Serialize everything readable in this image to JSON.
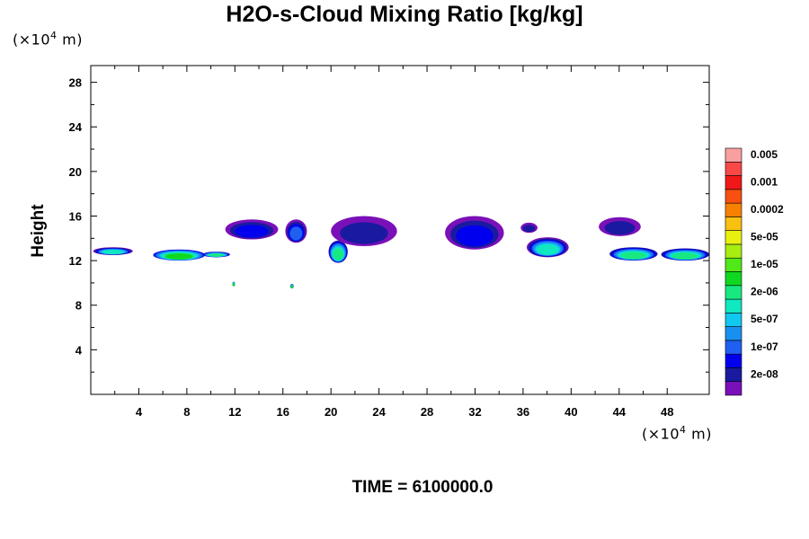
{
  "title": "H2O-s-Cloud Mixing Ratio [kg/kg]",
  "time_label": "TIME = 6100000.0",
  "y_unit": {
    "prefix": "(×10",
    "exp": "4",
    "suffix": " m)"
  },
  "x_unit": {
    "prefix": "(×10",
    "exp": "4",
    "suffix": " m)"
  },
  "chart_data": {
    "type": "heatmap",
    "title": "H2O-s-Cloud Mixing Ratio [kg/kg]",
    "xlabel": "",
    "ylabel": "Height",
    "xlim": [
      0,
      51.5
    ],
    "ylim": [
      0,
      29.5
    ],
    "x_ticks": [
      "4",
      "8",
      "12",
      "16",
      "20",
      "24",
      "28",
      "32",
      "36",
      "40",
      "44",
      "48"
    ],
    "y_ticks": [
      "4",
      "8",
      "12",
      "16",
      "20",
      "24",
      "28"
    ],
    "colorbar": {
      "labels": [
        "2e-08",
        "1e-07",
        "5e-07",
        "2e-06",
        "1e-05",
        "5e-05",
        "0.0002",
        "0.001",
        "0.005"
      ],
      "colors": [
        "#7a10b8",
        "#1a1aa0",
        "#0000ee",
        "#2060f0",
        "#1890f0",
        "#10c8f0",
        "#10e8c0",
        "#18e880",
        "#10d820",
        "#50e818",
        "#a8ec10",
        "#e8f010",
        "#f8c010",
        "#f88000",
        "#f85010",
        "#f01818",
        "#f84848",
        "#f8a0a0"
      ]
    },
    "cloud_regions": [
      {
        "x": [
          0.2,
          3.5
        ],
        "y": [
          12.5,
          13.2
        ],
        "level": 6
      },
      {
        "x": [
          5.2,
          9.5
        ],
        "y": [
          12.0,
          13.0
        ],
        "level": 8
      },
      {
        "x": [
          9.3,
          11.6
        ],
        "y": [
          12.3,
          12.8
        ],
        "level": 7
      },
      {
        "x": [
          11.2,
          15.6
        ],
        "y": [
          13.9,
          15.7
        ],
        "level": 2
      },
      {
        "x": [
          16.2,
          18.0
        ],
        "y": [
          13.6,
          15.7
        ],
        "level": 3
      },
      {
        "x": [
          19.8,
          21.4
        ],
        "y": [
          11.8,
          13.8
        ],
        "level": 7
      },
      {
        "x": [
          20.0,
          25.5
        ],
        "y": [
          13.3,
          16.0
        ],
        "level": 1
      },
      {
        "x": [
          29.5,
          34.4
        ],
        "y": [
          13.0,
          16.0
        ],
        "level": 2
      },
      {
        "x": [
          35.8,
          37.2
        ],
        "y": [
          14.5,
          15.4
        ],
        "level": 1
      },
      {
        "x": [
          36.3,
          39.8
        ],
        "y": [
          12.3,
          14.1
        ],
        "level": 6
      },
      {
        "x": [
          42.3,
          45.8
        ],
        "y": [
          14.2,
          15.9
        ],
        "level": 1
      },
      {
        "x": [
          43.2,
          47.2
        ],
        "y": [
          12.0,
          13.2
        ],
        "level": 7
      },
      {
        "x": [
          47.5,
          51.5
        ],
        "y": [
          12.0,
          13.1
        ],
        "level": 7
      },
      {
        "x": [
          11.8,
          12.0
        ],
        "y": [
          9.7,
          10.1
        ],
        "level": 8
      },
      {
        "x": [
          16.6,
          16.9
        ],
        "y": [
          9.5,
          9.9
        ],
        "level": 8
      }
    ]
  }
}
